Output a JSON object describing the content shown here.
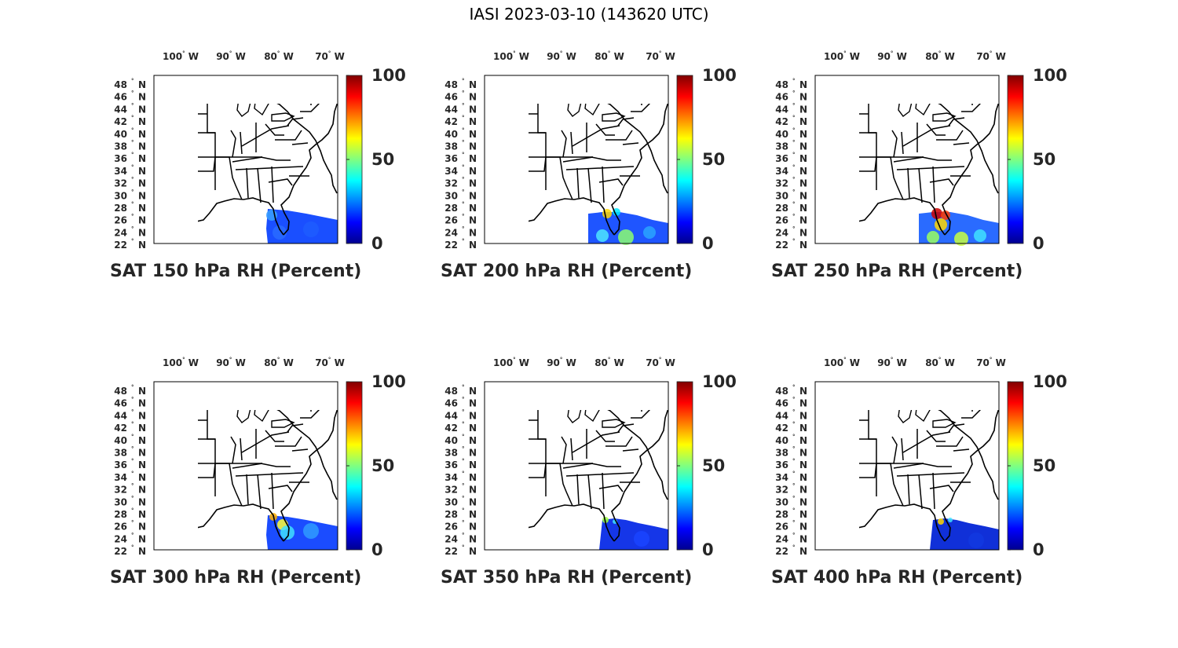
{
  "figure_title": "IASI 2023-03-10 (143620 UTC)",
  "colors": {
    "jet": [
      "#00008f",
      "#0000ff",
      "#00ffff",
      "#ffff00",
      "#ff0000",
      "#800000"
    ],
    "outline": "#000000",
    "text": "#262626"
  },
  "lon_ticks": [
    {
      "num": "100",
      "hemi": "W"
    },
    {
      "num": "90",
      "hemi": "W"
    },
    {
      "num": "80",
      "hemi": "W"
    },
    {
      "num": "70",
      "hemi": "W"
    }
  ],
  "lat_ticks": [
    {
      "num": "48",
      "hemi": "N"
    },
    {
      "num": "46",
      "hemi": "N"
    },
    {
      "num": "44",
      "hemi": "N"
    },
    {
      "num": "42",
      "hemi": "N"
    },
    {
      "num": "40",
      "hemi": "N"
    },
    {
      "num": "38",
      "hemi": "N"
    },
    {
      "num": "36",
      "hemi": "N"
    },
    {
      "num": "34",
      "hemi": "N"
    },
    {
      "num": "32",
      "hemi": "N"
    },
    {
      "num": "30",
      "hemi": "N"
    },
    {
      "num": "28",
      "hemi": "N"
    },
    {
      "num": "26",
      "hemi": "N"
    },
    {
      "num": "24",
      "hemi": "N"
    },
    {
      "num": "22",
      "hemi": "N"
    }
  ],
  "colorbar": {
    "ticks": [
      "100",
      "50",
      "0"
    ],
    "range": [
      0,
      100
    ]
  },
  "panels": [
    {
      "title": "SAT 150 hPa RH (Percent)",
      "level_hpa": 150
    },
    {
      "title": "SAT 200 hPa RH (Percent)",
      "level_hpa": 200
    },
    {
      "title": "SAT 250 hPa RH (Percent)",
      "level_hpa": 250
    },
    {
      "title": "SAT 300 hPa RH (Percent)",
      "level_hpa": 300
    },
    {
      "title": "SAT 350 hPa RH (Percent)",
      "level_hpa": 350
    },
    {
      "title": "SAT 400 hPa RH (Percent)",
      "level_hpa": 400
    }
  ]
}
